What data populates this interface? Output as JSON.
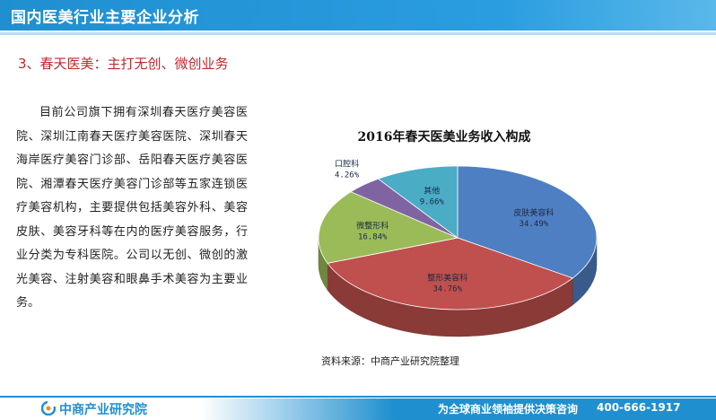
{
  "header": {
    "title": "国内医美行业主要企业分析"
  },
  "section": {
    "subtitle": "3、春天医美：主打无创、微创业务"
  },
  "body": {
    "paragraph": "目前公司旗下拥有深圳春天医疗美容医院、深圳江南春天医疗美容医院、深圳春天海岸医疗美容门诊部、岳阳春天医疗美容医院、湘潭春天医疗美容门诊部等五家连锁医疗美容机构，主要提供包括美容外科、美容皮肤、美容牙科等在内的医疗美容服务，行业分类为专科医院。公司以无创、微创的激光美容、注射美容和眼鼻手术美容为主要业务。"
  },
  "chart_data": {
    "type": "pie",
    "title": "2016年春天医美业务收入构成",
    "slices": [
      {
        "label": "皮肤美容科",
        "value": 34.49,
        "display": "34.49%",
        "color": "#4f7fc3"
      },
      {
        "label": "整形美容科",
        "value": 34.76,
        "display": "34.76%",
        "color": "#c0504d"
      },
      {
        "label": "微整形科",
        "value": 16.84,
        "display": "16.84%",
        "color": "#9bbb59"
      },
      {
        "label": "口腔科",
        "value": 4.26,
        "display": "4.26%",
        "color": "#8064a2"
      },
      {
        "label": "其他",
        "value": 9.66,
        "display": "9.66%",
        "color": "#4bacc6"
      }
    ],
    "three_d": true
  },
  "source": {
    "text": "资料来源：中商产业研究院整理"
  },
  "footer": {
    "logo": "中商产业研究院",
    "slogan": "为全球商业领袖提供决策咨询",
    "phone": "400-666-1917"
  }
}
